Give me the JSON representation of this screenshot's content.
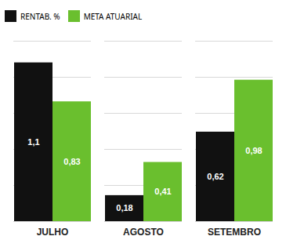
{
  "chart_data": {
    "type": "bar",
    "categories": [
      "JULHO",
      "AGOSTO",
      "SETEMBRO"
    ],
    "series": [
      {
        "name": "RENTAB. %",
        "color": "#111111",
        "values": [
          1.1,
          0.18,
          0.62
        ],
        "value_labels": [
          "1,1",
          "0,18",
          "0,62"
        ]
      },
      {
        "name": "META ATUARIAL",
        "color": "#6abf2e",
        "values": [
          0.83,
          0.41,
          0.98
        ],
        "value_labels": [
          "0,83",
          "0,41",
          "0,98"
        ]
      }
    ],
    "ylim": [
      0,
      1.25
    ],
    "yticks": [
      0.25,
      0.5,
      0.75,
      1,
      1.25
    ],
    "grid": true,
    "legend": "top",
    "data_labels": true,
    "tick_labels": "x"
  }
}
